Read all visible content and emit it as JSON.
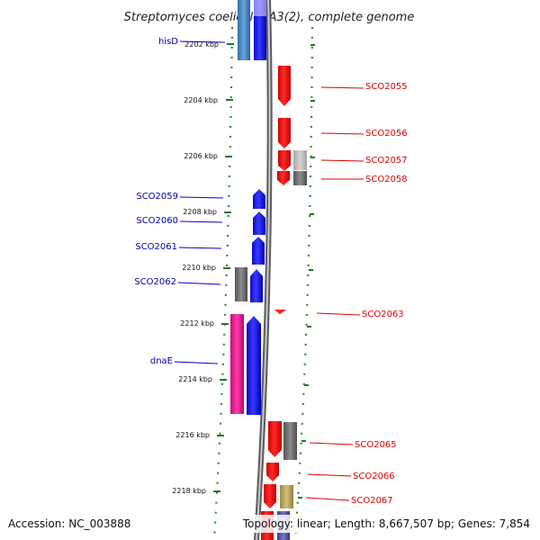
{
  "title": "Streptomyces coelicolor A3(2), complete genome",
  "accession": "Accession: NC_003888",
  "summary": "Topology: linear; Length: 8,667,507 bp; Genes: 7,854",
  "colors": {
    "forward_strand": "#1f1fff",
    "reverse_strand": "#ff1a1a",
    "backbone": "#8a8a8a",
    "dotted_ring": "#2e8b2e",
    "tick_mark": "#1d7a1d",
    "label_left": "#0000aa",
    "label_right": "#dd0000",
    "steelblue_feature": "#4a86c6",
    "gray_feature": "#6e6e6e",
    "light_gray_feature": "#bdbdbd",
    "magenta_feature": "#e0148c",
    "olive_feature": "#b3a45a",
    "navy_feature": "#4b4b9e"
  },
  "ticks": [
    {
      "kbp": 2202,
      "label": "2202 kbp"
    },
    {
      "kbp": 2204,
      "label": "2204 kbp"
    },
    {
      "kbp": 2206,
      "label": "2206 kbp"
    },
    {
      "kbp": 2208,
      "label": "2208 kbp"
    },
    {
      "kbp": 2210,
      "label": "2210 kbp"
    },
    {
      "kbp": 2212,
      "label": "2212 kbp"
    },
    {
      "kbp": 2214,
      "label": "2214 kbp"
    },
    {
      "kbp": 2216,
      "label": "2216 kbp"
    },
    {
      "kbp": 2218,
      "label": "2218 kbp"
    }
  ],
  "labels_left": [
    {
      "id": "hisd",
      "text": "hisD"
    },
    {
      "id": "sco2059",
      "text": "SCO2059"
    },
    {
      "id": "sco2060",
      "text": "SCO2060"
    },
    {
      "id": "sco2061",
      "text": "SCO2061"
    },
    {
      "id": "sco2062",
      "text": "SCO2062"
    },
    {
      "id": "dnae",
      "text": "dnaE"
    }
  ],
  "labels_right": [
    {
      "id": "sco2055",
      "text": "SCO2055"
    },
    {
      "id": "sco2056",
      "text": "SCO2056"
    },
    {
      "id": "sco2057",
      "text": "SCO2057"
    },
    {
      "id": "sco2058",
      "text": "SCO2058"
    },
    {
      "id": "sco2063",
      "text": "SCO2063"
    },
    {
      "id": "sco2065",
      "text": "SCO2065"
    },
    {
      "id": "sco2066",
      "text": "SCO2066"
    },
    {
      "id": "sco2067",
      "text": "SCO2067"
    }
  ]
}
